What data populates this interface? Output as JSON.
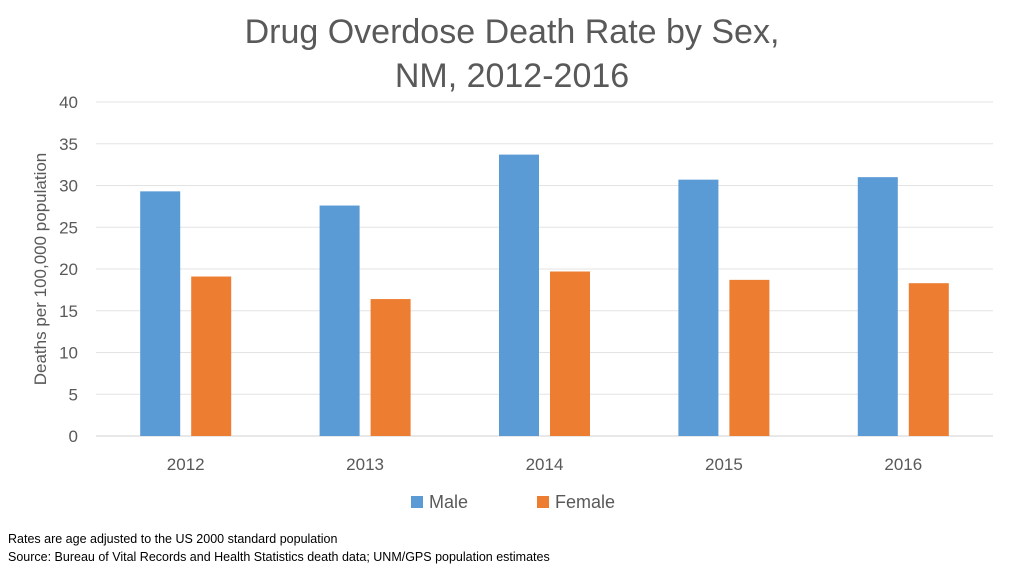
{
  "chart_data": {
    "type": "bar",
    "title_lines": [
      "Drug Overdose Death Rate by Sex,",
      "NM, 2012-2016"
    ],
    "xlabel": "",
    "ylabel": "Deaths per 100,000 population",
    "categories": [
      "2012",
      "2013",
      "2014",
      "2015",
      "2016"
    ],
    "series": [
      {
        "name": "Male",
        "values": [
          29.3,
          27.6,
          33.7,
          30.7,
          31.0
        ],
        "color": "#5B9BD5"
      },
      {
        "name": "Female",
        "values": [
          19.1,
          16.4,
          19.7,
          18.7,
          18.3
        ],
        "color": "#ED7D31"
      }
    ],
    "ylim": [
      0,
      40
    ],
    "yticks": [
      "0",
      "5",
      "10",
      "15",
      "20",
      "25",
      "30",
      "35",
      "40"
    ],
    "grid": true,
    "legend_position": "bottom"
  },
  "notes": {
    "line1": "Rates are age adjusted to the US 2000 standard population",
    "line2": "Source:  Bureau of Vital Records and Health Statistics death data; UNM/GPS population estimates"
  }
}
